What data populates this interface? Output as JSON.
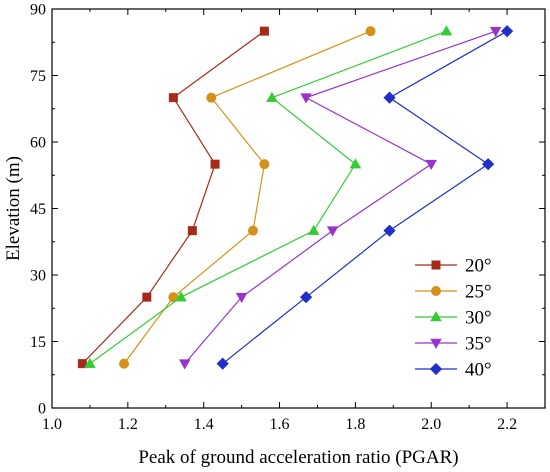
{
  "chart_data": {
    "type": "line",
    "title": "",
    "xlabel": "Peak of ground acceleration ratio (PGAR)",
    "ylabel": "Elevation (m)",
    "xlim": [
      1.0,
      2.3
    ],
    "ylim": [
      0,
      90
    ],
    "xticks": [
      "1.0",
      "1.2",
      "1.4",
      "1.6",
      "1.8",
      "2.0",
      "2.2"
    ],
    "yticks": [
      "0",
      "15",
      "30",
      "45",
      "60",
      "75",
      "90"
    ],
    "grid": false,
    "legend": "bottom-right",
    "series": [
      {
        "name": "20°",
        "color": "#a52a1a",
        "marker": "square",
        "points": [
          [
            1.08,
            10
          ],
          [
            1.25,
            25
          ],
          [
            1.37,
            40
          ],
          [
            1.43,
            55
          ],
          [
            1.32,
            70
          ],
          [
            1.56,
            85
          ]
        ]
      },
      {
        "name": "25°",
        "color": "#d4921a",
        "marker": "circle",
        "points": [
          [
            1.19,
            10
          ],
          [
            1.32,
            25
          ],
          [
            1.53,
            40
          ],
          [
            1.56,
            55
          ],
          [
            1.42,
            70
          ],
          [
            1.84,
            85
          ]
        ]
      },
      {
        "name": "30°",
        "color": "#33cc33",
        "marker": "triangle-up",
        "points": [
          [
            1.1,
            10
          ],
          [
            1.34,
            25
          ],
          [
            1.69,
            40
          ],
          [
            1.8,
            55
          ],
          [
            1.58,
            70
          ],
          [
            2.04,
            85
          ]
        ]
      },
      {
        "name": "35°",
        "color": "#9933cc",
        "marker": "triangle-down",
        "points": [
          [
            1.35,
            10
          ],
          [
            1.5,
            25
          ],
          [
            1.74,
            40
          ],
          [
            2.0,
            55
          ],
          [
            1.67,
            70
          ],
          [
            2.17,
            85
          ]
        ]
      },
      {
        "name": "40°",
        "color": "#1f2fc8",
        "marker": "diamond",
        "points": [
          [
            1.45,
            10
          ],
          [
            1.67,
            25
          ],
          [
            1.89,
            40
          ],
          [
            2.15,
            55
          ],
          [
            1.89,
            70
          ],
          [
            2.2,
            85
          ]
        ]
      }
    ]
  }
}
